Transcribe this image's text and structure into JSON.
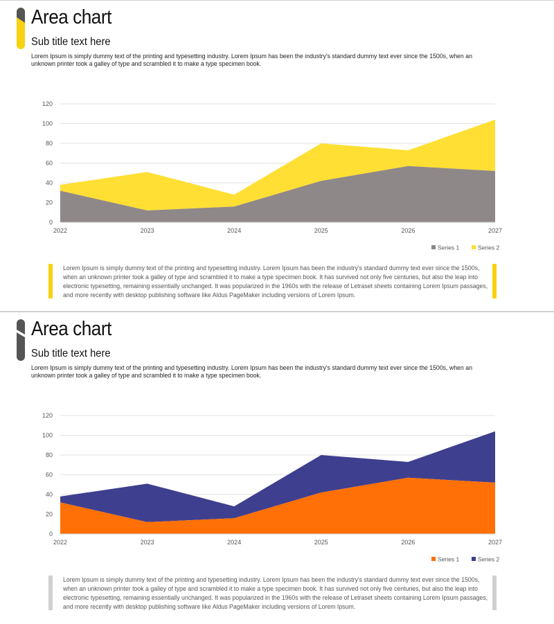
{
  "slides": [
    {
      "title": "Area chart",
      "subtitle": "Sub title text here",
      "description": "Lorem Ipsum is simply dummy text of the printing and typesetting industry. Lorem Ipsum has been the industry's standard dummy text ever since the 1500s, when an unknown printer took a galley of type and scrambled it to make a type specimen book.",
      "footer_text": "Lorem Ipsum is simply dummy text of the printing and typesetting industry. Lorem Ipsum has been the industry's standard dummy text ever since the 1500s, when an unknown printer took a galley of type and scrambled it to make a type specimen book. It has survived not only five centuries, but also the leap into electronic typesetting, remaining essentially unchanged. It was popularized in the 1960s with the release of Letraset sheets containing Lorem Ipsum passages, and more recently with desktop publishing software like Aldus PageMaker including versions of Lorem Ipsum.",
      "colors": {
        "series1": "#8f8888",
        "series2": "#ffdf33",
        "accent": "#f8d210",
        "accent_dark": "#555555",
        "quote_bar": "#f8d210"
      }
    },
    {
      "title": "Area chart",
      "subtitle": "Sub title text here",
      "description": "Lorem Ipsum is simply dummy text of the printing and typesetting industry. Lorem Ipsum has been the industry's standard dummy text ever since the 1500s, when an unknown printer took a galley of type and scrambled it to make a type specimen book.",
      "footer_text": "Lorem Ipsum is simply dummy text of the printing and typesetting industry. Lorem Ipsum has been the industry's standard dummy text ever since the 1500s, when an unknown printer took a galley of type and scrambled it to make a type specimen book. It has survived not only five centuries, but also the leap into electronic typesetting, remaining essentially unchanged. It was popularized in the 1960s with the release of Letraset sheets containing Lorem Ipsum passages, and more recently with desktop publishing software like Aldus PageMaker including versions of Lorem Ipsum.",
      "colors": {
        "series1": "#ff7006",
        "series2": "#3f3f8f",
        "accent": "#555555",
        "accent_dark": "#555555",
        "quote_bar": "#d0d0d0"
      }
    }
  ],
  "chart_data": [
    {
      "type": "area",
      "stacked": true,
      "x": [
        "2022",
        "2023",
        "2024",
        "2025",
        "2026",
        "2027"
      ],
      "series": [
        {
          "name": "Series 1",
          "values": [
            32,
            12,
            16,
            42,
            57,
            52
          ]
        },
        {
          "name": "Series 2",
          "values": [
            6,
            39,
            12,
            38,
            16,
            52
          ]
        }
      ],
      "yticks": [
        0,
        20,
        40,
        60,
        80,
        100,
        120
      ],
      "ylim": [
        0,
        120
      ],
      "legend": "bottom-right",
      "grid": true
    },
    {
      "type": "area",
      "stacked": true,
      "x": [
        "2022",
        "2023",
        "2024",
        "2025",
        "2026",
        "2027"
      ],
      "series": [
        {
          "name": "Series 1",
          "values": [
            32,
            12,
            16,
            42,
            57,
            52
          ]
        },
        {
          "name": "Series 2",
          "values": [
            6,
            39,
            12,
            38,
            16,
            52
          ]
        }
      ],
      "yticks": [
        0,
        20,
        40,
        60,
        80,
        100,
        120
      ],
      "ylim": [
        0,
        120
      ],
      "legend": "bottom-right",
      "grid": true
    }
  ]
}
